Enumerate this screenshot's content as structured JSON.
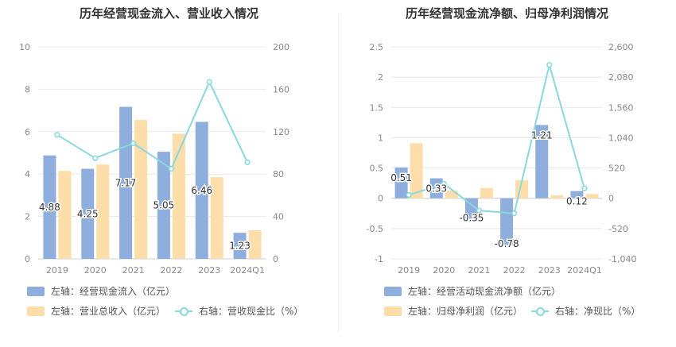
{
  "charts": {
    "left": {
      "title": "历年经营现金流入、营业收入情况",
      "legend": [
        {
          "label": "左轴：经营现金流入（亿元）",
          "color": "#8eaedd",
          "kind": "bar"
        },
        {
          "label": "左轴：营业总收入（亿元）",
          "color": "#fdddaa",
          "kind": "bar"
        },
        {
          "label": "右轴：营收现金比（%）",
          "color": "#88d8dc",
          "kind": "line"
        }
      ]
    },
    "right": {
      "title": "历年经营现金流净额、归母净利润情况",
      "legend": [
        {
          "label": "左轴：经营活动现金流净额（亿元）",
          "color": "#8eaedd",
          "kind": "bar"
        },
        {
          "label": "左轴：归母净利润（亿元）",
          "color": "#fdddaa",
          "kind": "bar"
        },
        {
          "label": "右轴：净现比（%）",
          "color": "#88d8dc",
          "kind": "line"
        }
      ]
    }
  },
  "chart_data": [
    {
      "type": "bar",
      "categories": [
        "2019",
        "2020",
        "2021",
        "2022",
        "2023",
        "2024Q1"
      ],
      "left_axis": {
        "ylim": [
          0,
          10
        ],
        "ticks": [
          "0",
          "2",
          "4",
          "6",
          "8",
          "10"
        ]
      },
      "right_axis": {
        "ylim": [
          0,
          200
        ],
        "ticks": [
          "0",
          "40",
          "80",
          "120",
          "160",
          "200"
        ]
      },
      "series": [
        {
          "name": "左轴：经营现金流入（亿元）",
          "axis": "left",
          "kind": "bar",
          "color": "#8eaedd",
          "values": [
            4.88,
            4.25,
            7.17,
            5.05,
            6.46,
            1.23
          ],
          "labels": [
            "4.88",
            "4.25",
            "7.17",
            "5.05",
            "6.46",
            "1.23"
          ]
        },
        {
          "name": "左轴：营业总收入（亿元）",
          "axis": "left",
          "kind": "bar",
          "color": "#fdddaa",
          "values": [
            4.15,
            4.45,
            6.55,
            5.9,
            3.85,
            1.35
          ]
        },
        {
          "name": "右轴：营收现金比（%）",
          "axis": "right",
          "kind": "line",
          "color": "#88d8dc",
          "values": [
            117,
            95,
            109,
            85,
            167,
            91
          ]
        }
      ],
      "grid": true,
      "legend_position": "bottom-left"
    },
    {
      "type": "bar",
      "categories": [
        "2019",
        "2020",
        "2021",
        "2022",
        "2023",
        "2024Q1"
      ],
      "left_axis": {
        "ylim": [
          -1,
          2.5
        ],
        "ticks": [
          "-1",
          "-0.5",
          "0",
          "0.5",
          "1",
          "1.5",
          "2",
          "2.5"
        ]
      },
      "right_axis": {
        "ylim": [
          -1040,
          2600
        ],
        "ticks": [
          "-1,040",
          "-520",
          "0",
          "520",
          "1,040",
          "1,560",
          "2,080",
          "2,600"
        ]
      },
      "series": [
        {
          "name": "左轴：经营活动现金流净额（亿元）",
          "axis": "left",
          "kind": "bar",
          "color": "#8eaedd",
          "values": [
            0.51,
            0.33,
            -0.35,
            -0.78,
            1.21,
            0.12
          ],
          "labels": [
            "0.51",
            "0.33",
            "-0.35",
            "-0.78",
            "1.21",
            "0.12"
          ]
        },
        {
          "name": "左轴：归母净利润（亿元）",
          "axis": "left",
          "kind": "bar",
          "color": "#fdddaa",
          "values": [
            0.91,
            0.13,
            0.17,
            0.3,
            0.05,
            0.07
          ]
        },
        {
          "name": "右轴：净现比（%）",
          "axis": "right",
          "kind": "line",
          "color": "#88d8dc",
          "values": [
            56,
            250,
            -210,
            -260,
            2290,
            170
          ]
        }
      ],
      "grid": true,
      "legend_position": "bottom-left"
    }
  ]
}
